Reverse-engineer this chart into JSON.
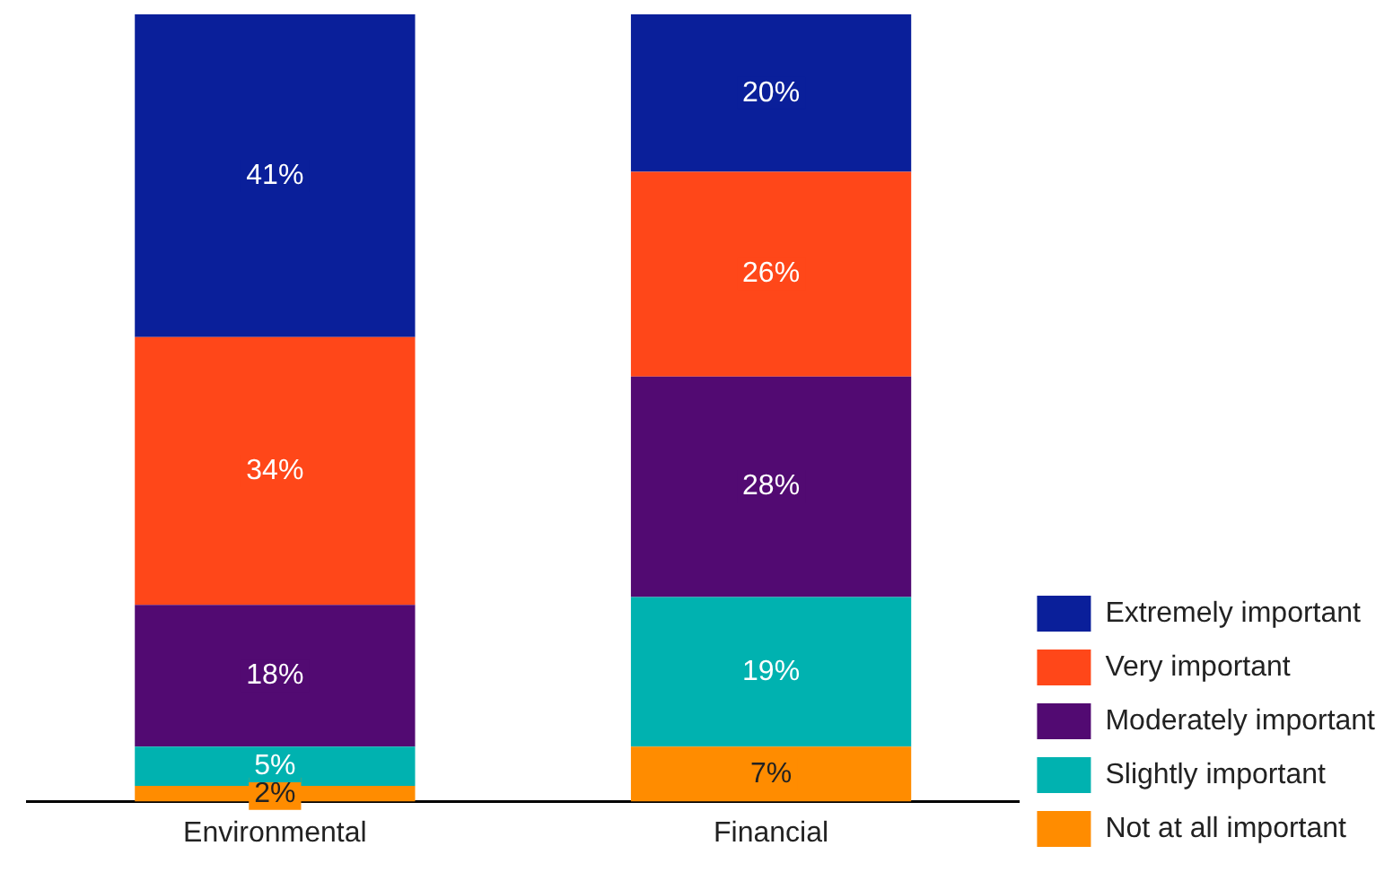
{
  "chart_data": {
    "type": "bar",
    "stacked": true,
    "categories": [
      "Environmental",
      "Financial"
    ],
    "series": [
      {
        "name": "Not at all important",
        "color": "#ff8c00",
        "values": [
          2,
          7
        ],
        "value_labels": [
          "2%",
          "7%"
        ]
      },
      {
        "name": "Slightly important",
        "color": "#00b2b0",
        "values": [
          5,
          19
        ],
        "value_labels": [
          "5%",
          "19%"
        ]
      },
      {
        "name": "Moderately important",
        "color": "#520a72",
        "values": [
          18,
          28
        ],
        "value_labels": [
          "18%",
          "28%"
        ]
      },
      {
        "name": "Very important",
        "color": "#ff4719",
        "values": [
          34,
          26
        ],
        "value_labels": [
          "34%",
          "26%"
        ]
      },
      {
        "name": "Extremely important",
        "color": "#0a1f9a",
        "values": [
          41,
          20
        ],
        "value_labels": [
          "41%",
          "20%"
        ]
      }
    ],
    "legend": "right"
  }
}
